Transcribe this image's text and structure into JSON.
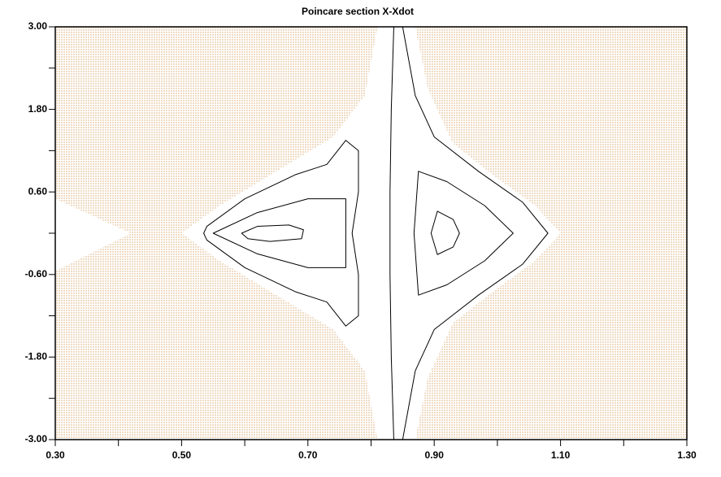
{
  "chart_data": {
    "type": "line",
    "title": "Poincare section X-Xdot",
    "xlim": [
      0.3,
      1.3
    ],
    "ylim": [
      -3,
      3
    ],
    "xticks": [
      {
        "value": 0.3,
        "label": "0.30"
      },
      {
        "value": 0.5,
        "label": "0.50"
      },
      {
        "value": 0.7,
        "label": "0.70"
      },
      {
        "value": 0.9,
        "label": "0.90"
      },
      {
        "value": 1.1,
        "label": "1.10"
      },
      {
        "value": 1.3,
        "label": "1.30"
      }
    ],
    "xminor": [
      0.4,
      0.6,
      0.8,
      1.0,
      1.2
    ],
    "yticks": [
      {
        "value": -3,
        "label": "-3.00"
      },
      {
        "value": -1.8,
        "label": "-1.80"
      },
      {
        "value": -0.6,
        "label": "-0.60"
      },
      {
        "value": 0.6,
        "label": "0.60"
      },
      {
        "value": 1.8,
        "label": "1.80"
      },
      {
        "value": 3,
        "label": "3.00"
      }
    ],
    "yminor": [
      -2.4,
      -1.2,
      0,
      1.2,
      2.4
    ],
    "sea_color": "#d9a56a",
    "series": [
      {
        "color": "#ffffff",
        "fill": true,
        "x": [
          0.81,
          0.79,
          0.74,
          0.65,
          0.56,
          0.5,
          0.56,
          0.65,
          0.74,
          0.79,
          0.81,
          0.87,
          0.89,
          0.93,
          1.0,
          1.06,
          1.1,
          1.06,
          1.0,
          0.93,
          0.89,
          0.87
        ],
        "values": [
          3,
          2.0,
          1.4,
          0.9,
          0.4,
          0,
          -0.4,
          -0.9,
          -1.4,
          -2.0,
          -3,
          -3,
          -2.1,
          -1.3,
          -0.8,
          -0.4,
          0,
          0.4,
          0.8,
          1.3,
          2.1,
          3
        ]
      },
      {
        "color": "#ffffff",
        "fill": true,
        "x": [
          0.3,
          0.42,
          0.3
        ],
        "values": [
          0.5,
          0,
          -0.55
        ]
      },
      {
        "color": "#000000",
        "x": [
          0.836,
          0.832,
          0.83,
          0.83,
          0.832,
          0.836
        ],
        "values": [
          3,
          1.8,
          0.6,
          -0.6,
          -1.8,
          -3
        ]
      },
      {
        "color": "#000000",
        "x": [
          0.85,
          0.87,
          0.9,
          0.97,
          1.04,
          1.08,
          1.04,
          0.97,
          0.9,
          0.87,
          0.85
        ],
        "values": [
          3,
          2,
          1.4,
          0.9,
          0.45,
          0,
          -0.45,
          -0.9,
          -1.4,
          -2,
          -3
        ]
      },
      {
        "color": "#000000",
        "closed": true,
        "x": [
          0.875,
          0.92,
          0.98,
          1.025,
          0.98,
          0.92,
          0.875,
          0.868
        ],
        "values": [
          0.9,
          0.75,
          0.4,
          0,
          -0.4,
          -0.75,
          -0.9,
          0
        ]
      },
      {
        "color": "#000000",
        "closed": true,
        "x": [
          0.905,
          0.93,
          0.94,
          0.93,
          0.905,
          0.895
        ],
        "values": [
          0.32,
          0.2,
          0,
          -0.2,
          -0.31,
          0
        ]
      },
      {
        "color": "#000000",
        "closed": true,
        "x": [
          0.595,
          0.62,
          0.67,
          0.693,
          0.69,
          0.64,
          0.605
        ],
        "values": [
          0,
          0.1,
          0.12,
          0.05,
          -0.08,
          -0.12,
          -0.08
        ]
      },
      {
        "color": "#000000",
        "closed": true,
        "x": [
          0.54,
          0.6,
          0.68,
          0.73,
          0.76,
          0.78,
          0.78,
          0.77,
          0.78,
          0.78,
          0.76,
          0.73,
          0.68,
          0.6,
          0.54,
          0.535
        ],
        "values": [
          0.1,
          0.5,
          0.85,
          1.0,
          1.35,
          1.2,
          0.6,
          0,
          -0.6,
          -1.2,
          -1.35,
          -1.0,
          -0.85,
          -0.5,
          -0.1,
          0
        ]
      },
      {
        "color": "#000000",
        "closed": true,
        "x": [
          0.55,
          0.62,
          0.7,
          0.76,
          0.76,
          0.76,
          0.7,
          0.62
        ],
        "values": [
          0,
          0.3,
          0.5,
          0.5,
          0,
          -0.5,
          -0.5,
          -0.3
        ]
      }
    ]
  }
}
